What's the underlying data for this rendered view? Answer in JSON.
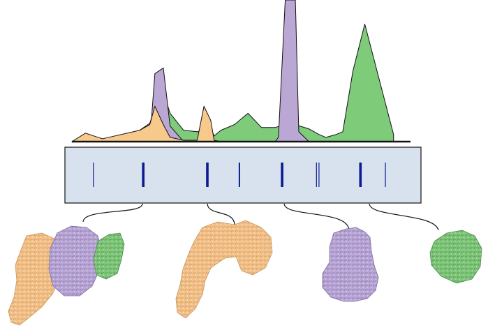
{
  "chart_data": {
    "type": "area",
    "title": "",
    "xlabel": "",
    "ylabel": "",
    "xlim": [
      0,
      100
    ],
    "ylim": [
      0,
      100
    ],
    "grid": false,
    "legend": "none",
    "series": [
      {
        "name": "green-component",
        "color": "#7ecb7a",
        "x": [
          0,
          10,
          14,
          20,
          23,
          24.5,
          27,
          29,
          33,
          37,
          41,
          42,
          44,
          48,
          52,
          56,
          60,
          63,
          66,
          70,
          73,
          75,
          78,
          80,
          83,
          86.5,
          95
        ],
        "y": [
          0,
          0,
          2,
          8,
          13,
          24,
          35,
          20,
          8,
          7,
          10,
          4,
          8,
          12,
          20,
          10,
          10,
          12,
          12,
          9,
          5,
          3,
          5,
          7,
          50,
          83,
          5
        ]
      },
      {
        "name": "purple-component",
        "color": "#bba7d4",
        "x": [
          20,
          23,
          24.5,
          27,
          29,
          33,
          60,
          61,
          63,
          66,
          67,
          70
        ],
        "y": [
          0,
          0,
          48,
          52,
          11,
          0,
          0,
          3,
          100,
          100,
          7,
          0
        ]
      },
      {
        "name": "orange-component",
        "color": "#f7c98b",
        "x": [
          0,
          4,
          9,
          20,
          23,
          24.5,
          27,
          29,
          33,
          37,
          39,
          41,
          42,
          44
        ],
        "y": [
          0,
          6,
          2,
          8,
          12,
          25,
          12,
          3,
          1,
          1,
          25,
          15,
          1,
          0
        ]
      }
    ],
    "bands": [
      {
        "position": 8,
        "intensity": "weak"
      },
      {
        "position": 22,
        "intensity": "strong"
      },
      {
        "position": 40,
        "intensity": "strong"
      },
      {
        "position": 49,
        "intensity": "medium"
      },
      {
        "position": 61,
        "intensity": "strong"
      },
      {
        "position": 71,
        "intensity": "doublet"
      },
      {
        "position": 83,
        "intensity": "strong"
      },
      {
        "position": 90,
        "intensity": "weak"
      }
    ],
    "structures": [
      {
        "name": "orange-purple-green-complex",
        "colors": [
          "#f7c98b",
          "#bba7d4",
          "#7ecb7a"
        ]
      },
      {
        "name": "orange-subunit",
        "colors": [
          "#f7c98b"
        ]
      },
      {
        "name": "purple-subunit",
        "colors": [
          "#bba7d4"
        ]
      },
      {
        "name": "green-subunit",
        "colors": [
          "#7ecb7a"
        ]
      }
    ]
  },
  "colors": {
    "gel_fill": "#d8e2ee",
    "gel_border": "#222222",
    "band": "#0a1a8f",
    "outline": "#111111"
  }
}
